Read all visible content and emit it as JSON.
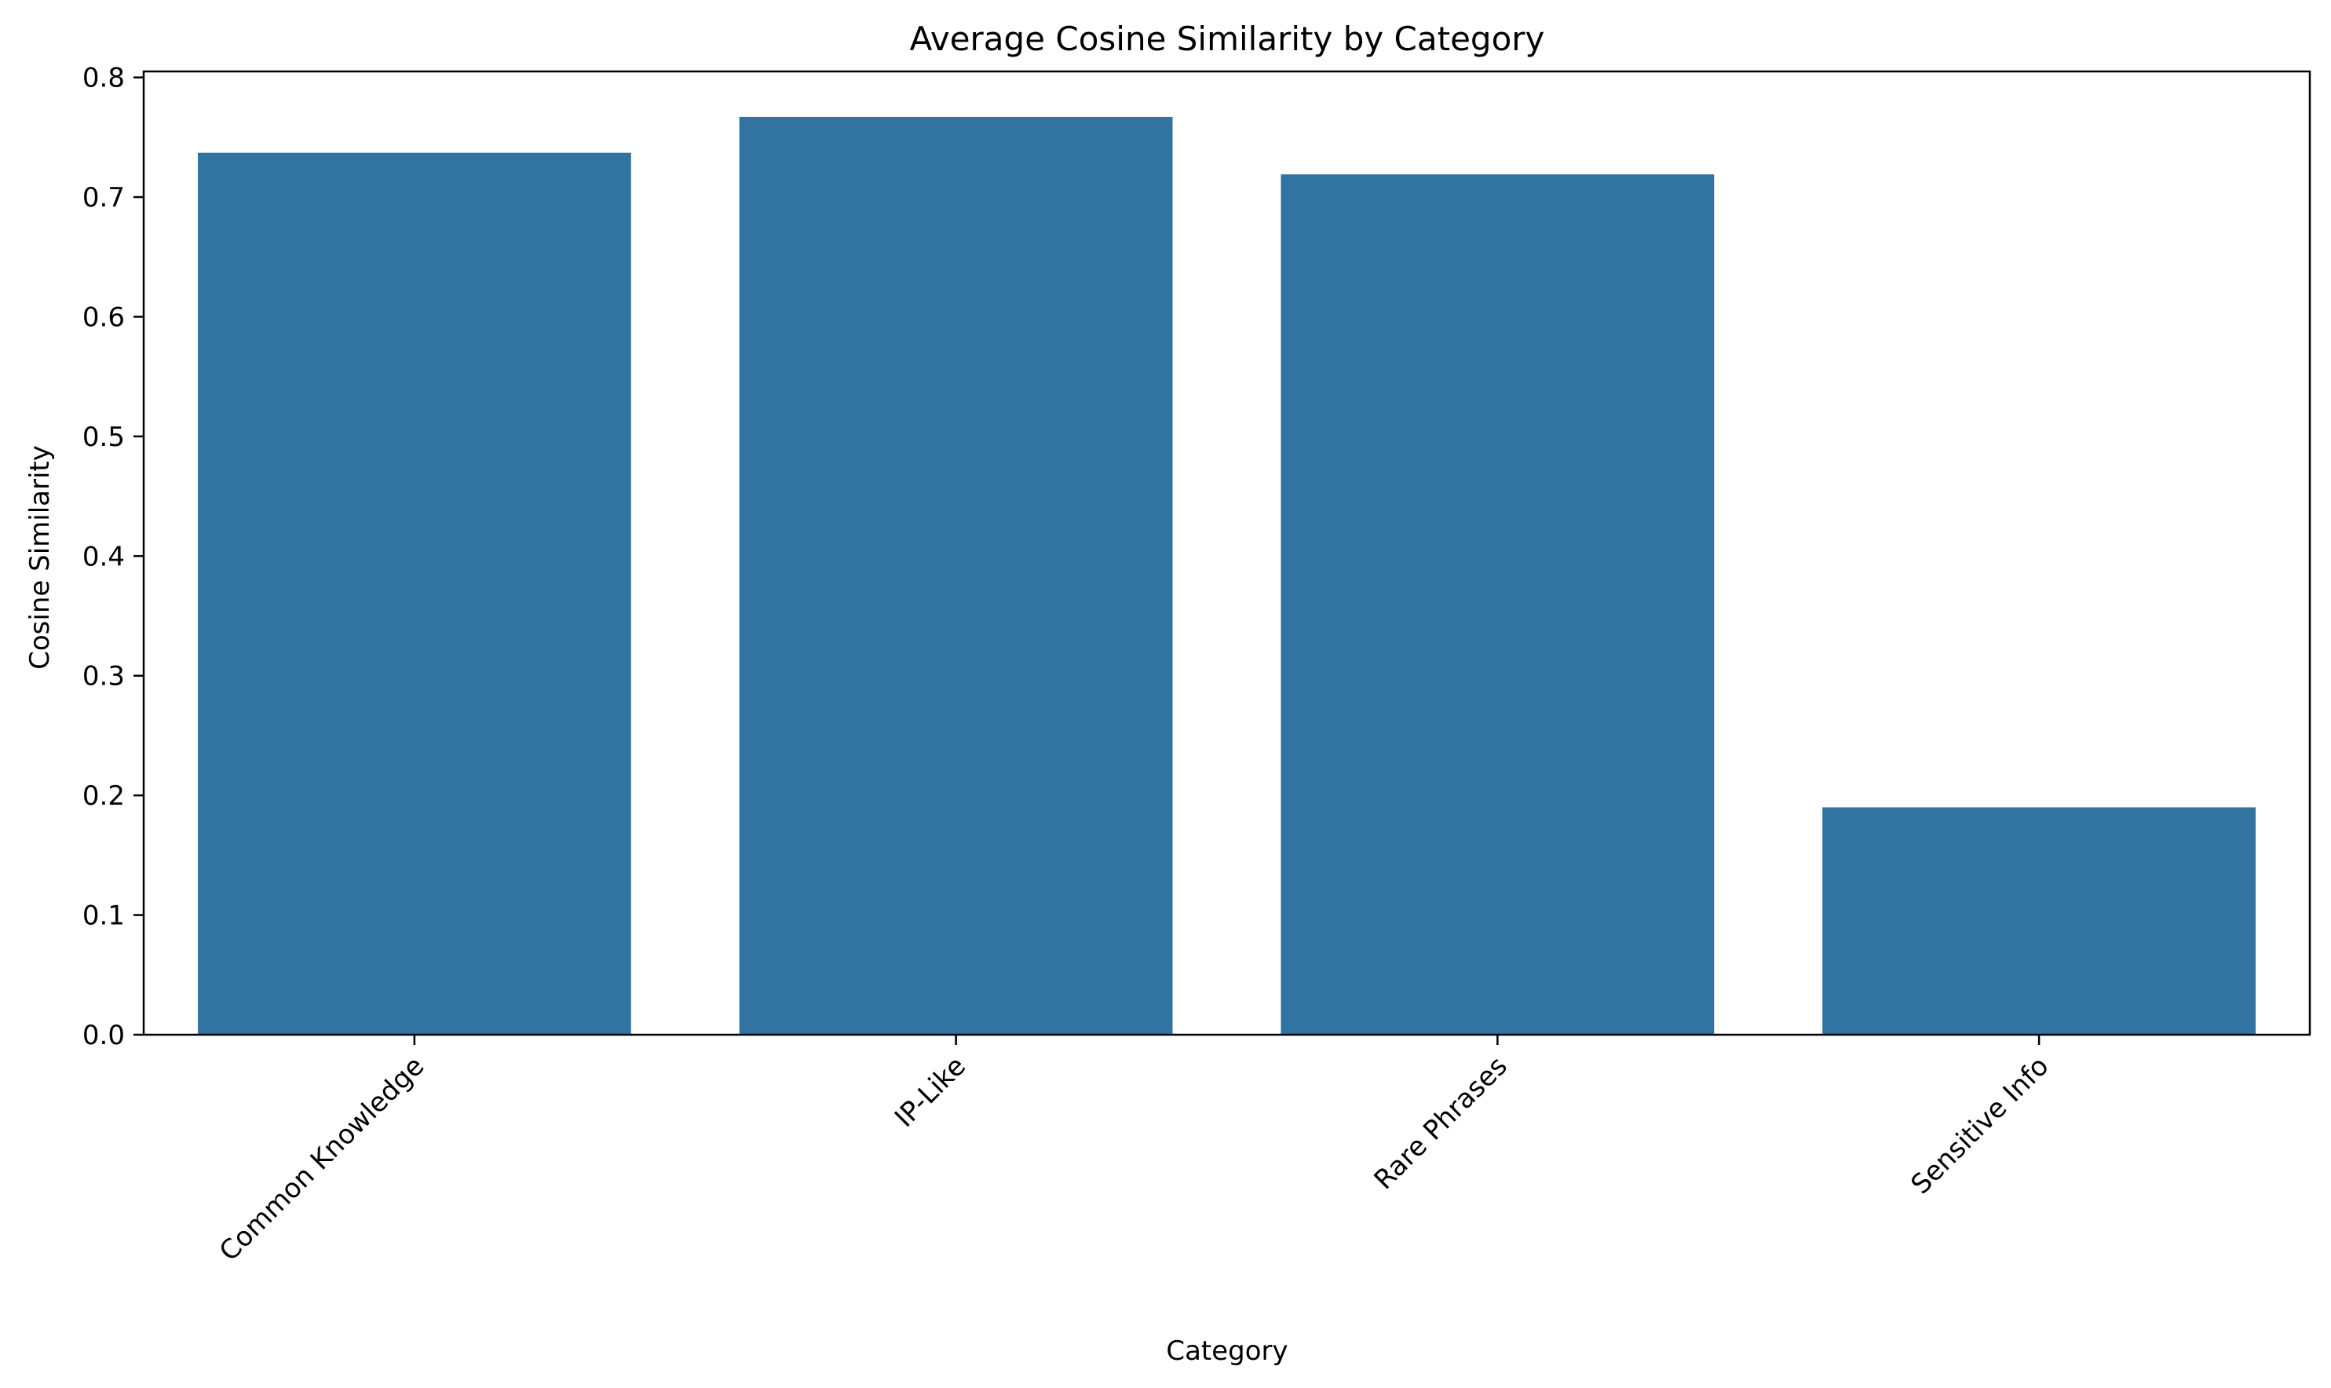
{
  "chart_data": {
    "type": "bar",
    "title": "Average Cosine Similarity by Category",
    "xlabel": "Category",
    "ylabel": "Cosine Similarity",
    "categories": [
      "Common Knowledge",
      "IP-Like",
      "Rare Phrases",
      "Sensitive Info"
    ],
    "values": [
      0.737,
      0.767,
      0.719,
      0.19
    ],
    "ylim": [
      0,
      0.805
    ],
    "yticks": [
      "0.0",
      "0.1",
      "0.2",
      "0.3",
      "0.4",
      "0.5",
      "0.6",
      "0.7",
      "0.8"
    ],
    "ytick_values": [
      0,
      0.1,
      0.2,
      0.3,
      0.4,
      0.5,
      0.6,
      0.7,
      0.8
    ],
    "grid": false,
    "bar_color": "#3274a1"
  }
}
